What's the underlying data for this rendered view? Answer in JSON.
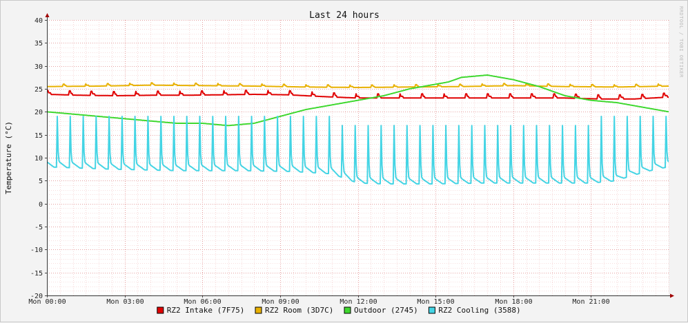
{
  "chart_data": {
    "type": "line",
    "title": "Last 24 hours",
    "ylabel": "Temperature (°C)",
    "xlabel": "",
    "ylim": [
      -20,
      40
    ],
    "y_ticks": [
      40,
      35,
      30,
      25,
      20,
      15,
      10,
      5,
      0,
      -5,
      -10,
      -15,
      -20
    ],
    "x_hours_range": [
      0,
      24
    ],
    "x_ticks": [
      {
        "hour": 0,
        "label": "Mon 00:00"
      },
      {
        "hour": 3,
        "label": "Mon 03:00"
      },
      {
        "hour": 6,
        "label": "Mon 06:00"
      },
      {
        "hour": 9,
        "label": "Mon 09:00"
      },
      {
        "hour": 12,
        "label": "Mon 12:00"
      },
      {
        "hour": 15,
        "label": "Mon 15:00"
      },
      {
        "hour": 18,
        "label": "Mon 18:00"
      },
      {
        "hour": 21,
        "label": "Mon 21:00"
      }
    ],
    "grid": true,
    "legend_position": "bottom-center",
    "watermark": "RRDTOOL / TOBI OETIKER",
    "series": [
      {
        "name": "RZ2 Intake (7F75)",
        "color": "#e00000",
        "x": [
          0,
          1.3,
          2.7,
          4.0,
          5.3,
          6.7,
          8.0,
          9.3,
          10.7,
          12.0,
          13.3,
          14.7,
          16.0,
          17.3,
          18.7,
          20.0,
          21.3,
          22.7,
          24.0
        ],
        "y": [
          23.8,
          23.6,
          23.5,
          23.6,
          23.6,
          23.7,
          23.8,
          23.7,
          23.3,
          23.0,
          23.0,
          23.0,
          23.0,
          23.0,
          23.0,
          23.0,
          22.8,
          22.8,
          23.2
        ],
        "spike_interval_h": 0.85,
        "spike_amplitude": 0.9
      },
      {
        "name": "RZ2 Room (3D7C)",
        "color": "#e8b000",
        "x": [
          0,
          2.0,
          4.0,
          6.0,
          8.0,
          10.0,
          12.0,
          14.0,
          16.0,
          18.0,
          20.0,
          22.0,
          24.0
        ],
        "y": [
          25.5,
          25.6,
          25.8,
          25.7,
          25.6,
          25.4,
          25.3,
          25.4,
          25.5,
          25.7,
          25.5,
          25.4,
          25.6
        ],
        "spike_interval_h": 0.85,
        "spike_amplitude": 0.5
      },
      {
        "name": "Outdoor (2745)",
        "color": "#3fd82f",
        "x": [
          0,
          1,
          2,
          3,
          4,
          5,
          6,
          7,
          8,
          9,
          10,
          11,
          12,
          13,
          14,
          15,
          15.5,
          16,
          17,
          17.5,
          18,
          19,
          20,
          21,
          22,
          23,
          24
        ],
        "y": [
          20.0,
          19.5,
          19.0,
          18.5,
          18.0,
          17.5,
          17.5,
          17.0,
          17.5,
          19.0,
          20.5,
          21.5,
          22.5,
          23.5,
          25.0,
          26.0,
          26.5,
          27.5,
          28.0,
          27.5,
          27.0,
          25.5,
          23.5,
          22.5,
          22.0,
          21.0,
          20.0
        ]
      },
      {
        "name": "RZ2 Cooling (3588)",
        "color": "#44d4e4",
        "x": [
          0,
          2.5,
          5,
          7.5,
          9.5,
          11,
          12,
          13,
          15,
          17,
          19,
          21,
          22,
          22.5,
          23.5,
          24
        ],
        "y": [
          8.0,
          7.5,
          7.2,
          7.2,
          7.0,
          6.5,
          4.5,
          4.3,
          4.3,
          4.5,
          4.5,
          4.5,
          5.0,
          6.0,
          7.5,
          8.0
        ],
        "spike_interval_h": 0.5,
        "spike_peak": 19.0
      }
    ]
  }
}
